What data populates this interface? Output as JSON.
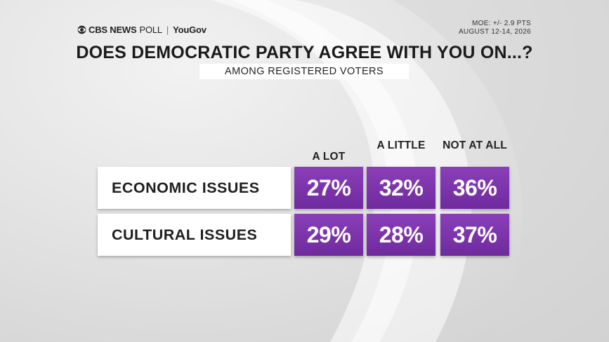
{
  "header": {
    "brand": "CBS NEWS",
    "poll": "POLL",
    "partner": "YouGov",
    "moe": "MOE: +/- 2.9 PTS",
    "dates": "AUGUST 12-14, 2026"
  },
  "title": "DOES DEMOCRATIC PARTY AGREE WITH YOU ON...?",
  "subtitle": "AMONG REGISTERED VOTERS",
  "colors": {
    "accent": "#7b33aa",
    "label_bg": "#ffffff"
  },
  "chart_data": {
    "type": "table",
    "title": "DOES DEMOCRATIC PARTY AGREE WITH YOU ON...?",
    "subtitle": "AMONG REGISTERED VOTERS",
    "columns": [
      "A LOT",
      "A LITTLE",
      "NOT AT ALL"
    ],
    "rows": [
      {
        "label": "ECONOMIC ISSUES",
        "values": [
          27,
          32,
          36
        ],
        "display": [
          "27%",
          "32%",
          "36%"
        ]
      },
      {
        "label": "CULTURAL ISSUES",
        "values": [
          29,
          28,
          37
        ],
        "display": [
          "29%",
          "28%",
          "37%"
        ]
      }
    ]
  }
}
